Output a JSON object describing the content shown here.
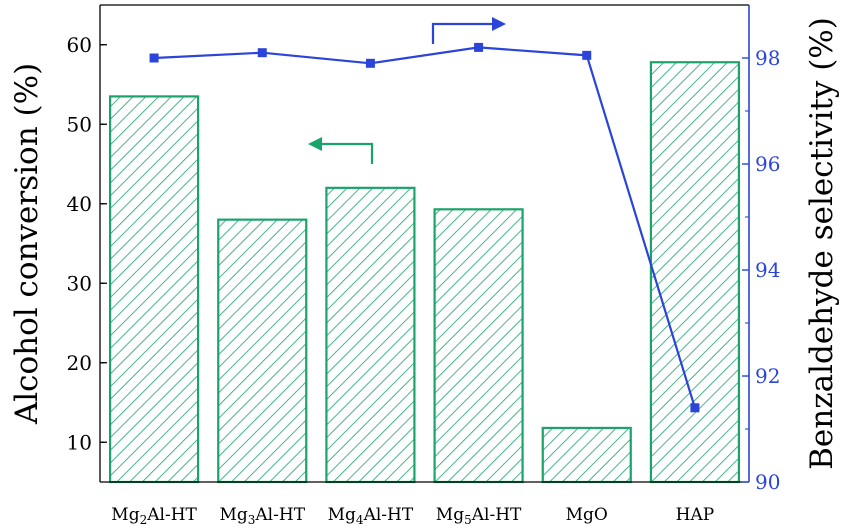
{
  "chart_data": {
    "type": "bar+line",
    "categories": [
      {
        "base": "Mg",
        "sub": "2",
        "rest": "Al-HT"
      },
      {
        "base": "Mg",
        "sub": "3",
        "rest": "Al-HT"
      },
      {
        "base": "Mg",
        "sub": "4",
        "rest": "Al-HT"
      },
      {
        "base": "Mg",
        "sub": "5",
        "rest": "Al-HT"
      },
      {
        "base": "MgO",
        "sub": "",
        "rest": ""
      },
      {
        "base": "HAP",
        "sub": "",
        "rest": ""
      }
    ],
    "bars": {
      "axis": "left",
      "values": [
        53.5,
        38.0,
        42.0,
        39.3,
        11.8,
        57.8
      ],
      "color": "#1aa36b"
    },
    "line": {
      "axis": "right",
      "values": [
        98.0,
        98.1,
        97.9,
        98.2,
        98.05,
        91.4
      ],
      "color": "#2a45d8"
    },
    "ylabel_left": "Alcohol conversion (%)",
    "ylabel_right": "Benzaldehyde selectivity (%)",
    "ylim_left": [
      5,
      65
    ],
    "yticks_left": [
      10,
      20,
      30,
      40,
      50,
      60
    ],
    "ylim_right": [
      90,
      99
    ],
    "yticks_right": [
      90,
      92,
      94,
      96,
      98
    ],
    "grid": false,
    "annotations": [
      {
        "type": "arrow",
        "direction": "left",
        "meaning": "bars-use-left-axis"
      },
      {
        "type": "arrow",
        "direction": "right",
        "meaning": "line-uses-right-axis"
      }
    ]
  }
}
